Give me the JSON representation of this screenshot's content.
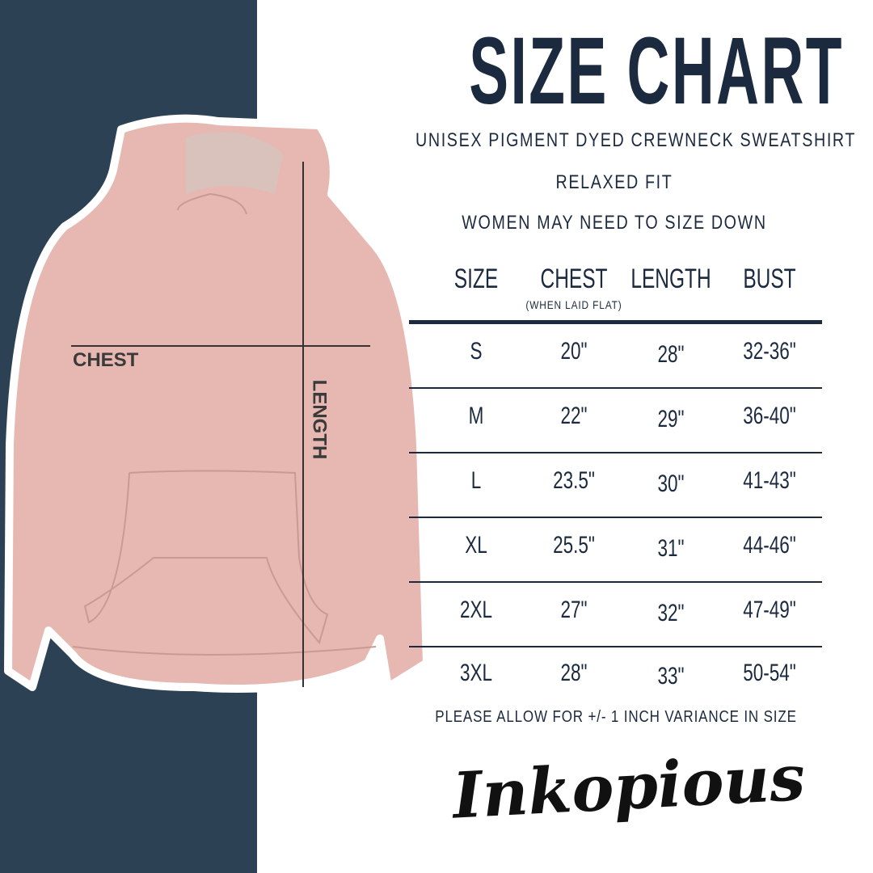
{
  "title": "SIZE CHART",
  "subtitle_lines": [
    "UNISEX PIGMENT DYED CREWNECK SWEATSHIRT",
    "RELAXED FIT",
    "WOMEN MAY NEED TO SIZE DOWN"
  ],
  "measure_labels": {
    "chest": "CHEST",
    "length": "LENGTH"
  },
  "table": {
    "headers": [
      "SIZE",
      "CHEST",
      "LENGTH",
      "BUST"
    ],
    "chest_note": "(WHEN LAID FLAT)",
    "rows": [
      [
        "S",
        "20\"",
        "28\"",
        "32-36\""
      ],
      [
        "M",
        "22\"",
        "29\"",
        "36-40\""
      ],
      [
        "L",
        "23.5\"",
        "30\"",
        "41-43\""
      ],
      [
        "XL",
        "25.5\"",
        "31\"",
        "44-46\""
      ],
      [
        "2XL",
        "27\"",
        "32\"",
        "47-49\""
      ],
      [
        "3XL",
        "28\"",
        "33\"",
        "50-54\""
      ]
    ]
  },
  "footer_note": "PLEASE ALLOW FOR +/- 1 INCH VARIANCE IN SIZE",
  "brand": "Inkopious",
  "colors": {
    "navy": "#2c4254",
    "text": "#1b2a3e",
    "hoodie": "#e7b8b1"
  }
}
